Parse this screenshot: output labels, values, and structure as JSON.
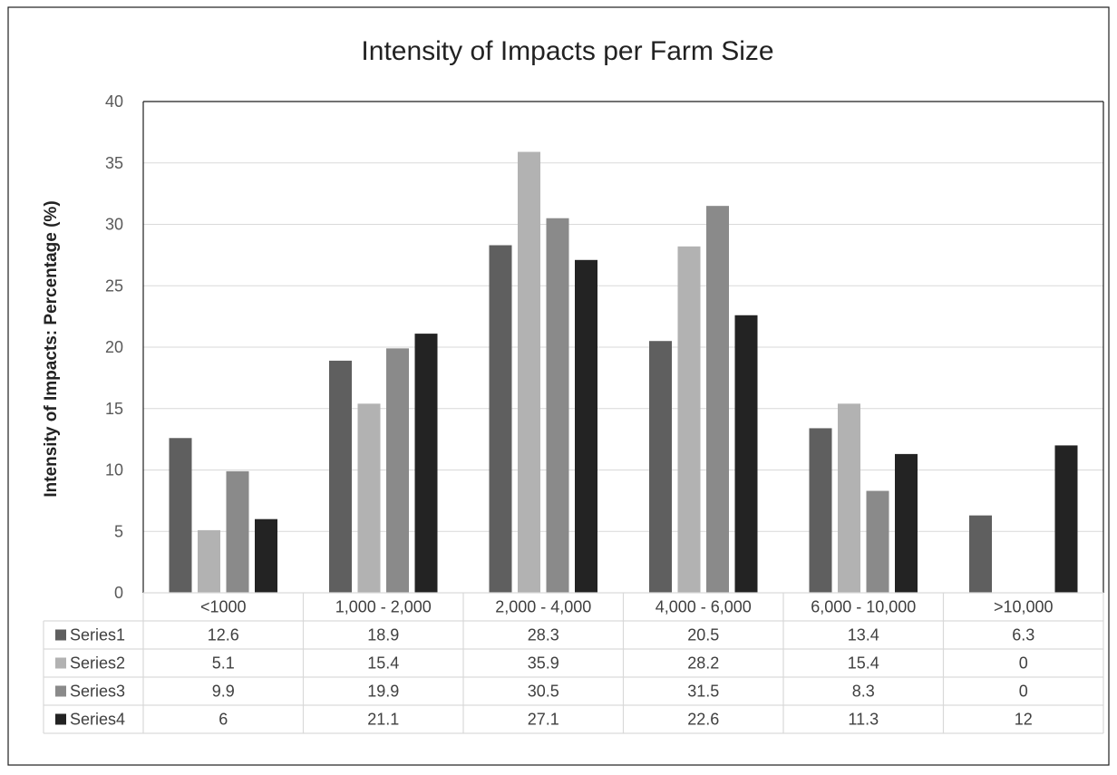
{
  "chart_data": {
    "type": "bar",
    "title": "Intensity of Impacts per Farm Size",
    "xlabel": "",
    "ylabel": "Intensity of Impacts: Percentage (%)",
    "ylim": [
      0,
      40
    ],
    "yticks": [
      0,
      5,
      10,
      15,
      20,
      25,
      30,
      35,
      40
    ],
    "grid": true,
    "legend": "data-table",
    "categories": [
      "<1000",
      "1,000 - 2,000",
      "2,000 - 4,000",
      "4,000 - 6,000",
      "6,000 - 10,000",
      ">10,000"
    ],
    "series": [
      {
        "name": "Series1",
        "color": "#5f5f5f",
        "values": [
          12.6,
          18.9,
          28.3,
          20.5,
          13.4,
          6.3
        ]
      },
      {
        "name": "Series2",
        "color": "#b2b2b2",
        "values": [
          5.1,
          15.4,
          35.9,
          28.2,
          15.4,
          0
        ]
      },
      {
        "name": "Series3",
        "color": "#8a8a8a",
        "values": [
          9.9,
          19.9,
          30.5,
          31.5,
          8.3,
          0
        ]
      },
      {
        "name": "Series4",
        "color": "#232323",
        "values": [
          6,
          21.1,
          27.1,
          22.6,
          11.3,
          12
        ]
      }
    ]
  }
}
